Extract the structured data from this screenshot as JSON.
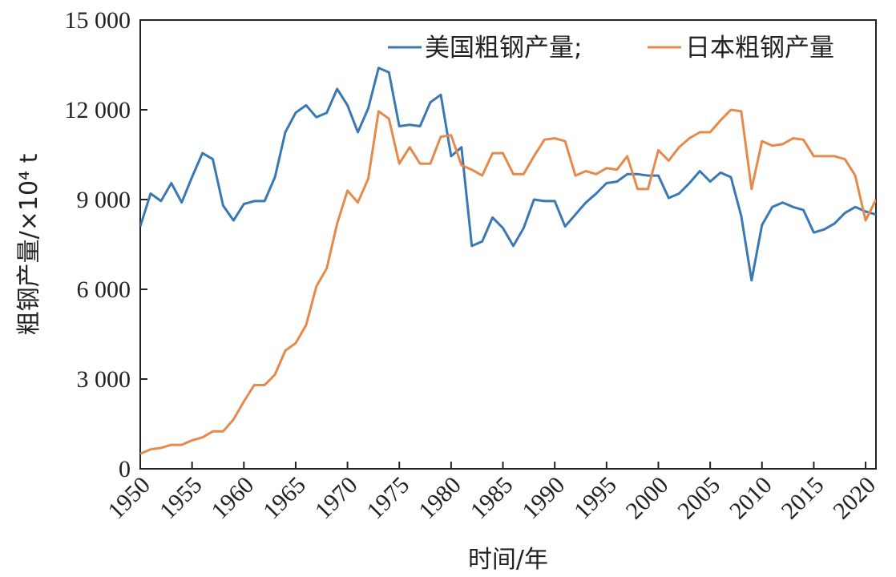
{
  "chart_data": {
    "type": "line",
    "title": "",
    "xlabel": "时间/年",
    "ylabel": "粗钢产量/×10⁴ t",
    "xlim": [
      1950,
      2021
    ],
    "ylim": [
      0,
      15000
    ],
    "x_ticks": [
      1950,
      1955,
      1960,
      1965,
      1970,
      1975,
      1980,
      1985,
      1990,
      1995,
      2000,
      2005,
      2010,
      2015,
      2020
    ],
    "y_ticks": [
      0,
      3000,
      6000,
      9000,
      12000,
      15000
    ],
    "y_tick_labels": [
      "0",
      "3 000",
      "6 000",
      "9 000",
      "12 000",
      "15 000"
    ],
    "grid": false,
    "legend_position": "top-right",
    "x": [
      1950,
      1951,
      1952,
      1953,
      1954,
      1955,
      1956,
      1957,
      1958,
      1959,
      1960,
      1961,
      1962,
      1963,
      1964,
      1965,
      1966,
      1967,
      1968,
      1969,
      1970,
      1971,
      1972,
      1973,
      1974,
      1975,
      1976,
      1977,
      1978,
      1979,
      1980,
      1981,
      1982,
      1983,
      1984,
      1985,
      1986,
      1987,
      1988,
      1989,
      1990,
      1991,
      1992,
      1993,
      1994,
      1995,
      1996,
      1997,
      1998,
      1999,
      2000,
      2001,
      2002,
      2003,
      2004,
      2005,
      2006,
      2007,
      2008,
      2009,
      2010,
      2011,
      2012,
      2013,
      2014,
      2015,
      2016,
      2017,
      2018,
      2019,
      2020,
      2021
    ],
    "series": [
      {
        "name": "美国粗钢产量;",
        "color": "#3a78b5",
        "values": [
          8100,
          9200,
          8950,
          9550,
          8900,
          9750,
          10550,
          10350,
          8800,
          8300,
          8850,
          8950,
          8950,
          9750,
          11250,
          11900,
          12150,
          11750,
          11900,
          12700,
          12150,
          11250,
          12050,
          13400,
          13250,
          11450,
          11500,
          11450,
          12250,
          12500,
          10450,
          10750,
          7450,
          7600,
          8400,
          8050,
          7450,
          8050,
          9000,
          8950,
          8950,
          8100,
          8500,
          8900,
          9200,
          9550,
          9600,
          9850,
          9850,
          9800,
          9800,
          9050,
          9200,
          9550,
          9950,
          9600,
          9900,
          9750,
          8450,
          6300,
          8150,
          8750,
          8900,
          8750,
          8650,
          7900,
          8000,
          8200,
          8550,
          8750,
          8600,
          8500
        ]
      },
      {
        "name": "日本粗钢产量",
        "color": "#e58a4b",
        "values": [
          500,
          650,
          700,
          800,
          800,
          950,
          1050,
          1250,
          1250,
          1650,
          2250,
          2800,
          2800,
          3150,
          3950,
          4200,
          4800,
          6100,
          6700,
          8200,
          9300,
          8900,
          9700,
          11950,
          11700,
          10200,
          10750,
          10200,
          10200,
          11100,
          11150,
          10150,
          10000,
          9800,
          10550,
          10550,
          9850,
          9850,
          10450,
          11000,
          11050,
          10950,
          9800,
          9950,
          9850,
          10050,
          10000,
          10450,
          9350,
          9350,
          10650,
          10300,
          10750,
          11050,
          11250,
          11250,
          11650,
          12000,
          11950,
          9350,
          10950,
          10800,
          10850,
          11050,
          11000,
          10450,
          10450,
          10450,
          10350,
          9800,
          8300,
          9000
        ]
      }
    ]
  }
}
